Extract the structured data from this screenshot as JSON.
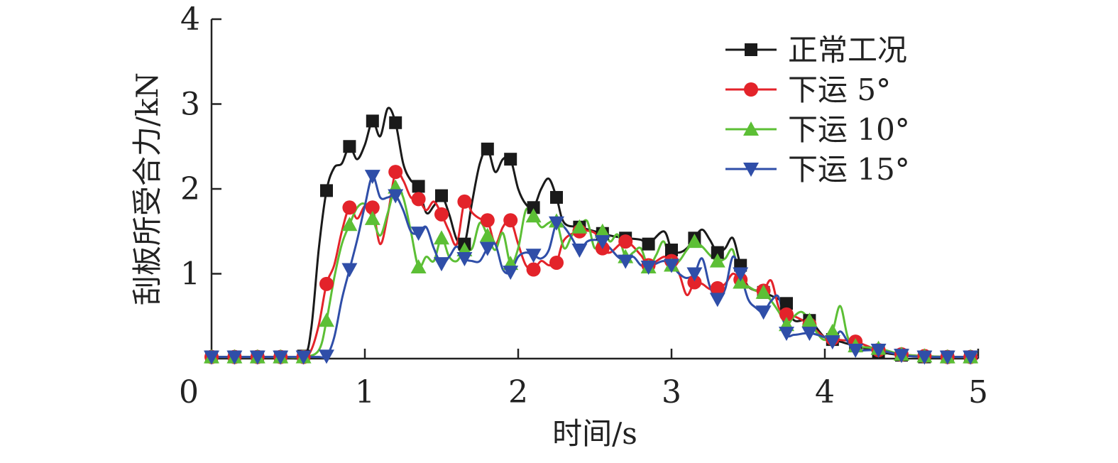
{
  "chart_data": {
    "type": "line",
    "title": "",
    "xlabel": "时间/s",
    "ylabel": "刮板所受合力/kN",
    "xlim": [
      0,
      5
    ],
    "ylim": [
      0,
      4
    ],
    "xticks": [
      "0",
      "1",
      "2",
      "3",
      "4",
      "5"
    ],
    "yticks": [
      "1",
      "2",
      "3",
      "4"
    ],
    "grid": false,
    "legend_position": "top-right",
    "series": [
      {
        "name": "正常工况",
        "color": "#1a1a1a",
        "marker": "square",
        "x": [
          0.0,
          0.15,
          0.3,
          0.45,
          0.6,
          0.65,
          0.7,
          0.75,
          0.8,
          0.85,
          0.9,
          0.95,
          1.0,
          1.05,
          1.1,
          1.15,
          1.2,
          1.25,
          1.3,
          1.35,
          1.4,
          1.45,
          1.5,
          1.55,
          1.6,
          1.65,
          1.7,
          1.75,
          1.8,
          1.85,
          1.9,
          1.95,
          2.0,
          2.05,
          2.1,
          2.15,
          2.2,
          2.25,
          2.3,
          2.4,
          2.5,
          2.6,
          2.7,
          2.8,
          2.85,
          2.95,
          3.0,
          3.05,
          3.1,
          3.15,
          3.2,
          3.25,
          3.3,
          3.35,
          3.4,
          3.45,
          3.5,
          3.6,
          3.7,
          3.75,
          3.8,
          3.9,
          4.0,
          4.1,
          4.2,
          4.35,
          4.5,
          4.65,
          4.8,
          5.0
        ],
        "y": [
          0.02,
          0.02,
          0.02,
          0.02,
          0.03,
          0.35,
          1.3,
          1.98,
          2.25,
          2.3,
          2.5,
          2.35,
          2.52,
          2.8,
          2.62,
          2.95,
          2.78,
          2.3,
          2.1,
          2.03,
          1.72,
          1.8,
          1.92,
          1.7,
          1.4,
          1.35,
          1.85,
          2.3,
          2.47,
          2.2,
          2.35,
          2.35,
          2.0,
          1.82,
          1.78,
          2.0,
          2.12,
          1.9,
          1.6,
          1.55,
          1.5,
          1.45,
          1.42,
          1.4,
          1.35,
          1.5,
          1.28,
          1.25,
          1.3,
          1.42,
          1.52,
          1.4,
          1.25,
          1.3,
          1.42,
          1.1,
          0.85,
          0.78,
          0.7,
          0.65,
          0.45,
          0.45,
          0.25,
          0.2,
          0.15,
          0.08,
          0.04,
          0.02,
          0.02,
          0.02
        ],
        "marker_x": [
          0.0,
          0.15,
          0.3,
          0.45,
          0.6,
          0.75,
          0.9,
          1.05,
          1.2,
          1.35,
          1.5,
          1.65,
          1.8,
          1.95,
          2.1,
          2.25,
          2.4,
          2.55,
          2.7,
          2.85,
          3.0,
          3.15,
          3.3,
          3.45,
          3.6,
          3.75,
          3.9,
          4.05,
          4.2,
          4.35,
          4.5,
          4.65,
          4.8,
          4.95
        ]
      },
      {
        "name": "下运 5°",
        "color": "#e3232a",
        "marker": "circle",
        "x": [
          0.0,
          0.15,
          0.3,
          0.45,
          0.6,
          0.65,
          0.7,
          0.75,
          0.8,
          0.85,
          0.9,
          0.95,
          1.0,
          1.05,
          1.1,
          1.15,
          1.2,
          1.25,
          1.3,
          1.35,
          1.4,
          1.45,
          1.5,
          1.55,
          1.6,
          1.65,
          1.7,
          1.75,
          1.8,
          1.85,
          1.9,
          1.95,
          2.0,
          2.05,
          2.1,
          2.15,
          2.2,
          2.25,
          2.3,
          2.4,
          2.5,
          2.55,
          2.6,
          2.7,
          2.8,
          2.85,
          2.95,
          3.0,
          3.05,
          3.1,
          3.15,
          3.2,
          3.25,
          3.3,
          3.35,
          3.4,
          3.45,
          3.5,
          3.55,
          3.6,
          3.65,
          3.7,
          3.75,
          3.8,
          3.9,
          4.0,
          4.1,
          4.2,
          4.35,
          4.5,
          4.65,
          4.8,
          5.0
        ],
        "y": [
          0.02,
          0.02,
          0.02,
          0.02,
          0.02,
          0.1,
          0.4,
          0.88,
          1.1,
          1.5,
          1.78,
          1.65,
          1.8,
          1.78,
          1.35,
          1.7,
          2.2,
          2.1,
          1.9,
          1.88,
          1.75,
          1.85,
          1.7,
          1.5,
          1.35,
          1.85,
          1.72,
          1.65,
          1.63,
          1.35,
          1.55,
          1.63,
          1.35,
          1.1,
          1.05,
          1.15,
          1.1,
          1.13,
          1.4,
          1.5,
          1.48,
          1.3,
          1.25,
          1.38,
          1.22,
          1.1,
          1.2,
          1.15,
          1.0,
          0.75,
          0.9,
          0.88,
          0.82,
          0.83,
          0.88,
          1.0,
          0.93,
          0.85,
          0.8,
          0.8,
          0.92,
          0.6,
          0.52,
          0.5,
          0.4,
          0.25,
          0.22,
          0.2,
          0.1,
          0.05,
          0.03,
          0.02,
          0.02
        ],
        "marker_x": [
          0.0,
          0.15,
          0.3,
          0.45,
          0.6,
          0.75,
          0.9,
          1.05,
          1.2,
          1.35,
          1.5,
          1.65,
          1.8,
          1.95,
          2.1,
          2.25,
          2.4,
          2.55,
          2.7,
          2.85,
          3.0,
          3.15,
          3.3,
          3.45,
          3.6,
          3.75,
          3.9,
          4.05,
          4.2,
          4.35,
          4.5,
          4.65,
          4.8,
          4.95
        ]
      },
      {
        "name": "下运 10°",
        "color": "#5cbf35",
        "marker": "triangle-up",
        "x": [
          0.0,
          0.15,
          0.3,
          0.45,
          0.6,
          0.7,
          0.75,
          0.8,
          0.85,
          0.9,
          0.95,
          1.0,
          1.05,
          1.1,
          1.15,
          1.2,
          1.25,
          1.3,
          1.35,
          1.4,
          1.45,
          1.5,
          1.55,
          1.6,
          1.65,
          1.7,
          1.75,
          1.8,
          1.85,
          1.9,
          1.95,
          2.0,
          2.05,
          2.1,
          2.15,
          2.2,
          2.25,
          2.3,
          2.35,
          2.4,
          2.45,
          2.5,
          2.55,
          2.6,
          2.65,
          2.7,
          2.75,
          2.8,
          2.85,
          2.9,
          2.95,
          3.0,
          3.05,
          3.1,
          3.15,
          3.2,
          3.25,
          3.3,
          3.35,
          3.4,
          3.45,
          3.5,
          3.55,
          3.6,
          3.65,
          3.7,
          3.75,
          3.8,
          3.85,
          3.9,
          3.95,
          4.0,
          4.05,
          4.1,
          4.15,
          4.2,
          4.35,
          4.5,
          4.65,
          4.8,
          5.0
        ],
        "y": [
          0.02,
          0.02,
          0.02,
          0.02,
          0.02,
          0.1,
          0.45,
          0.95,
          1.35,
          1.58,
          1.78,
          1.82,
          1.65,
          1.45,
          1.72,
          2.02,
          1.9,
          1.5,
          1.08,
          1.2,
          1.15,
          1.42,
          1.2,
          1.15,
          1.28,
          1.3,
          1.6,
          1.45,
          1.28,
          1.48,
          1.12,
          1.3,
          1.75,
          1.68,
          1.55,
          1.6,
          1.62,
          1.3,
          1.45,
          1.55,
          1.62,
          1.3,
          1.5,
          1.38,
          1.46,
          1.2,
          1.25,
          1.3,
          1.08,
          1.22,
          1.38,
          1.1,
          1.15,
          1.28,
          1.38,
          1.32,
          1.22,
          1.15,
          1.18,
          1.28,
          0.9,
          0.85,
          0.8,
          0.78,
          0.68,
          0.55,
          0.4,
          0.5,
          0.55,
          0.45,
          0.3,
          0.22,
          0.32,
          0.62,
          0.25,
          0.15,
          0.12,
          0.05,
          0.03,
          0.02,
          0.02
        ],
        "marker_x": [
          0.0,
          0.15,
          0.3,
          0.45,
          0.6,
          0.75,
          0.9,
          1.05,
          1.2,
          1.35,
          1.5,
          1.65,
          1.8,
          1.95,
          2.1,
          2.25,
          2.4,
          2.55,
          2.7,
          2.85,
          3.0,
          3.15,
          3.3,
          3.45,
          3.6,
          3.75,
          3.9,
          4.05,
          4.2,
          4.35,
          4.5,
          4.65,
          4.8,
          4.95
        ]
      },
      {
        "name": "下运 15°",
        "color": "#2f4ea8",
        "marker": "triangle-down",
        "x": [
          0.0,
          0.15,
          0.3,
          0.45,
          0.6,
          0.7,
          0.75,
          0.8,
          0.85,
          0.9,
          0.95,
          1.0,
          1.05,
          1.1,
          1.15,
          1.2,
          1.25,
          1.3,
          1.35,
          1.4,
          1.45,
          1.5,
          1.55,
          1.6,
          1.65,
          1.7,
          1.75,
          1.8,
          1.85,
          1.9,
          1.95,
          2.0,
          2.05,
          2.1,
          2.15,
          2.2,
          2.25,
          2.3,
          2.35,
          2.4,
          2.45,
          2.5,
          2.55,
          2.6,
          2.65,
          2.7,
          2.75,
          2.8,
          2.85,
          2.9,
          2.95,
          3.0,
          3.05,
          3.1,
          3.15,
          3.2,
          3.25,
          3.3,
          3.35,
          3.4,
          3.45,
          3.5,
          3.55,
          3.6,
          3.65,
          3.7,
          3.75,
          3.8,
          3.9,
          4.0,
          4.05,
          4.1,
          4.15,
          4.2,
          4.35,
          4.5,
          4.65,
          4.8,
          5.0
        ],
        "y": [
          0.02,
          0.02,
          0.02,
          0.02,
          0.02,
          0.02,
          0.03,
          0.25,
          0.7,
          1.05,
          1.4,
          1.8,
          2.15,
          1.9,
          1.9,
          1.92,
          1.75,
          1.5,
          1.48,
          1.55,
          1.3,
          1.12,
          1.2,
          1.32,
          1.18,
          1.15,
          1.15,
          1.3,
          1.35,
          1.05,
          1.02,
          1.2,
          1.25,
          1.22,
          1.18,
          1.28,
          1.6,
          1.55,
          1.42,
          1.28,
          1.38,
          1.4,
          1.38,
          1.3,
          1.2,
          1.15,
          1.2,
          1.1,
          1.08,
          1.12,
          1.15,
          1.1,
          1.0,
          0.95,
          1.0,
          1.18,
          0.85,
          0.7,
          0.82,
          1.2,
          1.0,
          0.7,
          0.6,
          0.55,
          0.68,
          0.72,
          0.3,
          0.28,
          0.3,
          0.25,
          0.2,
          0.32,
          0.2,
          0.1,
          0.1,
          0.04,
          0.02,
          0.02,
          0.02
        ],
        "marker_x": [
          0.0,
          0.15,
          0.3,
          0.45,
          0.6,
          0.75,
          0.9,
          1.05,
          1.2,
          1.35,
          1.5,
          1.65,
          1.8,
          1.95,
          2.1,
          2.25,
          2.4,
          2.55,
          2.7,
          2.85,
          3.0,
          3.15,
          3.3,
          3.45,
          3.6,
          3.75,
          3.9,
          4.05,
          4.2,
          4.35,
          4.5,
          4.65,
          4.8,
          4.95
        ]
      }
    ]
  }
}
